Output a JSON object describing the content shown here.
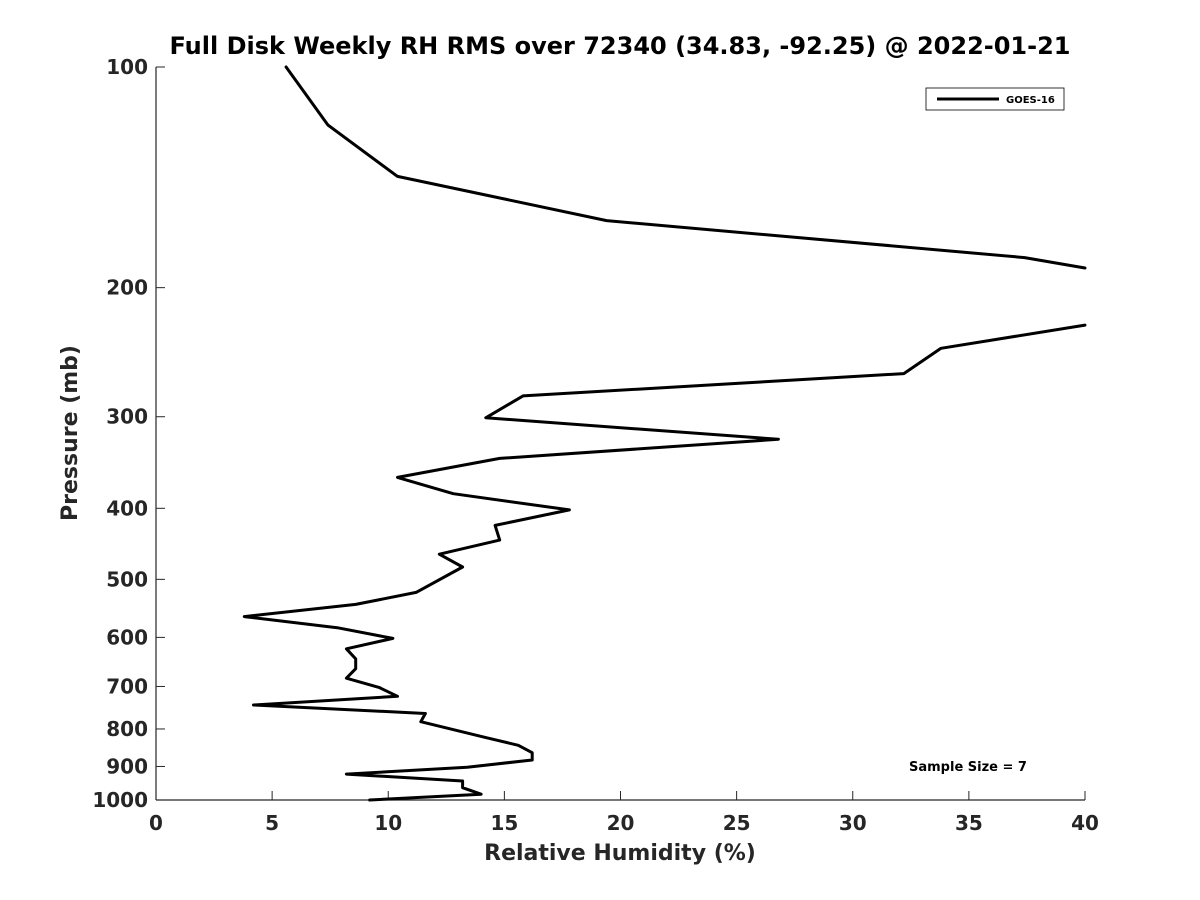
{
  "chart_data": {
    "type": "line",
    "title": "Full Disk Weekly RH RMS over 72340 (34.83, -92.25) @ 2022-01-21",
    "xlabel": "Relative Humidity (%)",
    "ylabel": "Pressure (mb)",
    "xlim": [
      0,
      40
    ],
    "ylim": [
      100,
      1000
    ],
    "y_scale": "log",
    "y_reversed": true,
    "grid": false,
    "x_ticks": [
      0,
      5,
      10,
      15,
      20,
      25,
      30,
      35,
      40
    ],
    "y_ticks": [
      100,
      200,
      300,
      400,
      500,
      600,
      700,
      800,
      900,
      1000
    ],
    "legend": {
      "position": "top-right"
    },
    "annotation": "Sample Size = 7",
    "series": [
      {
        "name": "GOES-16",
        "color": "#000000",
        "segments": [
          [
            {
              "x": 5.6,
              "y": 100
            },
            {
              "x": 7.4,
              "y": 120
            },
            {
              "x": 10.4,
              "y": 141
            },
            {
              "x": 19.4,
              "y": 162
            },
            {
              "x": 37.4,
              "y": 182
            },
            {
              "x": 40.0,
              "y": 188
            }
          ],
          [
            {
              "x": 40.0,
              "y": 225
            },
            {
              "x": 33.8,
              "y": 242
            },
            {
              "x": 32.2,
              "y": 262
            },
            {
              "x": 15.8,
              "y": 281
            },
            {
              "x": 14.2,
              "y": 301
            },
            {
              "x": 26.8,
              "y": 322
            },
            {
              "x": 14.8,
              "y": 342
            },
            {
              "x": 10.4,
              "y": 363
            },
            {
              "x": 12.8,
              "y": 382
            },
            {
              "x": 17.8,
              "y": 402
            },
            {
              "x": 14.6,
              "y": 422
            },
            {
              "x": 14.8,
              "y": 442
            },
            {
              "x": 12.2,
              "y": 462
            },
            {
              "x": 13.2,
              "y": 481
            },
            {
              "x": 11.2,
              "y": 521
            },
            {
              "x": 8.6,
              "y": 541
            },
            {
              "x": 3.8,
              "y": 562
            },
            {
              "x": 7.8,
              "y": 582
            },
            {
              "x": 10.2,
              "y": 602
            },
            {
              "x": 8.2,
              "y": 622
            },
            {
              "x": 8.6,
              "y": 642
            },
            {
              "x": 8.6,
              "y": 662
            },
            {
              "x": 8.2,
              "y": 682
            },
            {
              "x": 9.6,
              "y": 702
            },
            {
              "x": 10.4,
              "y": 722
            },
            {
              "x": 4.2,
              "y": 742
            },
            {
              "x": 11.6,
              "y": 762
            },
            {
              "x": 11.4,
              "y": 782
            },
            {
              "x": 14.2,
              "y": 822
            },
            {
              "x": 15.6,
              "y": 842
            },
            {
              "x": 16.2,
              "y": 862
            },
            {
              "x": 16.2,
              "y": 882
            },
            {
              "x": 13.4,
              "y": 902
            },
            {
              "x": 8.2,
              "y": 922
            },
            {
              "x": 13.2,
              "y": 942
            },
            {
              "x": 13.2,
              "y": 962
            },
            {
              "x": 14.0,
              "y": 982
            },
            {
              "x": 9.2,
              "y": 1000
            }
          ]
        ]
      }
    ]
  }
}
